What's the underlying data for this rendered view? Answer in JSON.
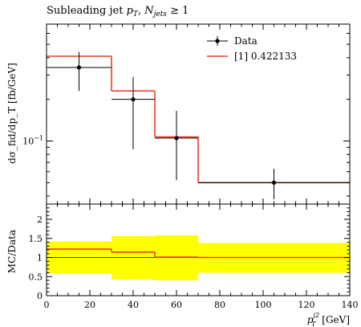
{
  "title": "Subleading jet p_T, N_jets ≥ 1",
  "title_parts": {
    "main": "Subleading jet ",
    "pvar": "p",
    "psub": "T",
    "sep": ", ",
    "nvar": "N",
    "nsub": "jets",
    "rel": " ≥ 1"
  },
  "ylabel_main": "dσ_fid/dp_T [fb/GeV]",
  "ylabel_ratio": "MC/Data",
  "xlabel": "p_T^j2 [GeV]",
  "xlabel_parts": {
    "var": "p",
    "sup": "j2",
    "sub": "T",
    "unit": " [GeV]"
  },
  "colors": {
    "data": "#000000",
    "mc": "#e8402a",
    "band": "#ffff00"
  },
  "chart_data": [
    {
      "type": "line",
      "title": "Subleading jet p_T, N_jets ≥ 1",
      "ylabel": "dσ_fid/dp_T [fb/GeV]",
      "yscale": "log",
      "xlim": [
        0,
        140
      ],
      "ylim": [
        0.035,
        0.7
      ],
      "y_tick_labels": [
        {
          "value": 0.1,
          "label": "10^-1"
        }
      ],
      "legend_position": "top-right",
      "series": [
        {
          "name": "Data",
          "kind": "points",
          "x": [
            15,
            40,
            60,
            105
          ],
          "y": [
            0.34,
            0.2,
            0.105,
            0.05
          ],
          "xerr": [
            [
              0,
              30
            ],
            [
              30,
              50
            ],
            [
              50,
              70
            ],
            [
              70,
              140
            ]
          ],
          "yerr_low": [
            0.23,
            0.087,
            0.052,
            0.038
          ],
          "yerr_high": [
            0.44,
            0.29,
            0.165,
            0.063
          ]
        },
        {
          "name": "[1] 0.422133",
          "kind": "histogram",
          "bins": [
            [
              0,
              30
            ],
            [
              30,
              50
            ],
            [
              50,
              70
            ],
            [
              70,
              140
            ]
          ],
          "values": [
            0.41,
            0.23,
            0.107,
            0.05
          ]
        }
      ]
    },
    {
      "type": "line",
      "ylabel": "MC/Data",
      "xlabel": "p_T^j2 [GeV]",
      "xlim": [
        0,
        140
      ],
      "ylim": [
        0,
        2.4
      ],
      "x_ticks": [
        0,
        20,
        40,
        60,
        80,
        100,
        120,
        140
      ],
      "y_ticks": [
        0,
        0.5,
        1,
        1.5,
        2
      ],
      "y_tick_labels": [
        "0",
        "0.5",
        "1",
        "1.5",
        "2"
      ],
      "reference_line": 1,
      "band": {
        "bins": [
          [
            0,
            30
          ],
          [
            30,
            50
          ],
          [
            50,
            70
          ],
          [
            70,
            140
          ]
        ],
        "low": [
          0.58,
          0.42,
          0.4,
          0.6
        ],
        "high": [
          1.42,
          1.56,
          1.58,
          1.38
        ]
      },
      "ratio": {
        "bins": [
          [
            0,
            30
          ],
          [
            30,
            50
          ],
          [
            50,
            70
          ],
          [
            70,
            140
          ]
        ],
        "values": [
          1.22,
          1.14,
          1.01,
          1.0
        ]
      }
    }
  ]
}
